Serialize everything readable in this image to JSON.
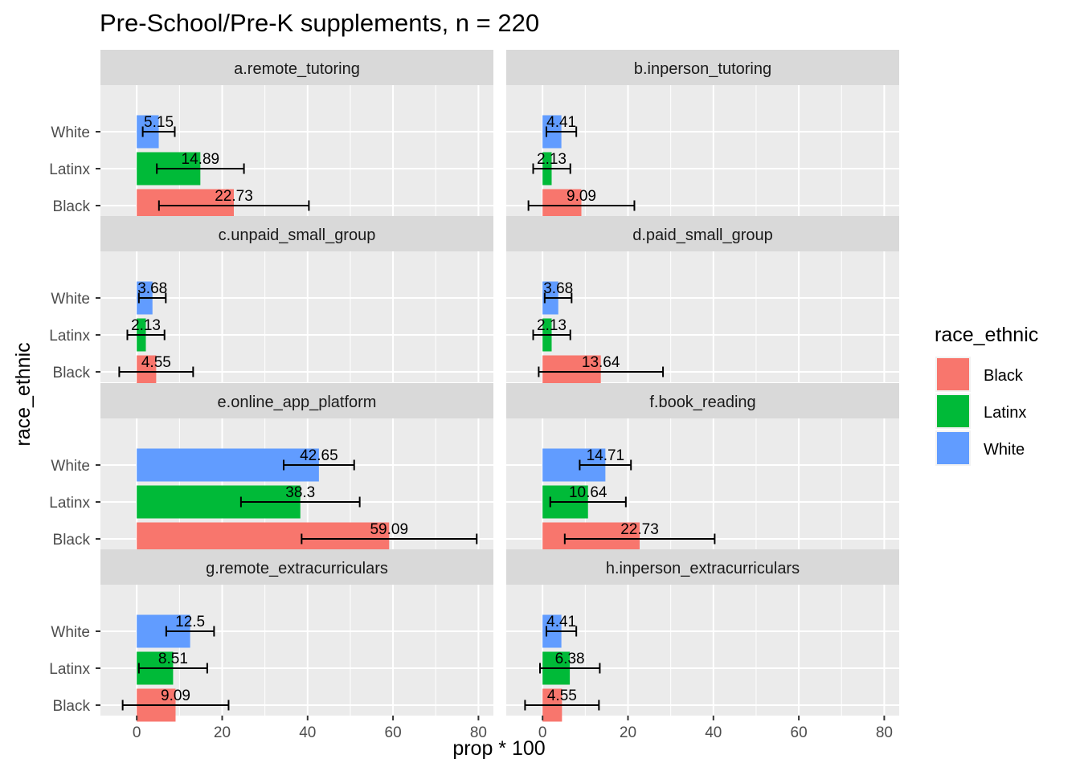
{
  "chart_data": {
    "type": "bar",
    "orientation": "horizontal",
    "title": "Pre-School/Pre-K supplements, n = 220",
    "xlabel": "prop * 100",
    "ylabel": "race_ethnic",
    "xlim": [
      -8.5,
      83.5
    ],
    "xticks": [
      0,
      20,
      40,
      60,
      80
    ],
    "categories": [
      "White",
      "Latinx",
      "Black"
    ],
    "grid": true,
    "legend": {
      "title": "race_ethnic",
      "position": "right",
      "entries": [
        {
          "name": "Black",
          "color": "#F8766D"
        },
        {
          "name": "Latinx",
          "color": "#00BA38"
        },
        {
          "name": "White",
          "color": "#619CFF"
        }
      ]
    },
    "colors": {
      "Black": "#F8766D",
      "Latinx": "#00BA38",
      "White": "#619CFF"
    },
    "panels": [
      {
        "name": "a.remote_tutoring",
        "bars": [
          {
            "group": "White",
            "value": 5.15,
            "label": "5.15",
            "lo": 1.4,
            "hi": 8.9
          },
          {
            "group": "Latinx",
            "value": 14.89,
            "label": "14.89",
            "lo": 4.7,
            "hi": 25.1
          },
          {
            "group": "Black",
            "value": 22.73,
            "label": "22.73",
            "lo": 5.2,
            "hi": 40.3
          }
        ]
      },
      {
        "name": "b.inperson_tutoring",
        "bars": [
          {
            "group": "White",
            "value": 4.41,
            "label": "4.41",
            "lo": 0.9,
            "hi": 7.9
          },
          {
            "group": "Latinx",
            "value": 2.13,
            "label": "2.13",
            "lo": -2.2,
            "hi": 6.5
          },
          {
            "group": "Black",
            "value": 9.09,
            "label": "9.09",
            "lo": -3.3,
            "hi": 21.5
          }
        ]
      },
      {
        "name": "c.unpaid_small_group",
        "bars": [
          {
            "group": "White",
            "value": 3.68,
            "label": "3.68",
            "lo": 0.5,
            "hi": 6.8
          },
          {
            "group": "Latinx",
            "value": 2.13,
            "label": "2.13",
            "lo": -2.2,
            "hi": 6.5
          },
          {
            "group": "Black",
            "value": 4.55,
            "label": "4.55",
            "lo": -4.1,
            "hi": 13.2
          }
        ]
      },
      {
        "name": "d.paid_small_group",
        "bars": [
          {
            "group": "White",
            "value": 3.68,
            "label": "3.68",
            "lo": 0.5,
            "hi": 6.8
          },
          {
            "group": "Latinx",
            "value": 2.13,
            "label": "2.13",
            "lo": -2.2,
            "hi": 6.5
          },
          {
            "group": "Black",
            "value": 13.64,
            "label": "13.64",
            "lo": -0.9,
            "hi": 28.2
          }
        ]
      },
      {
        "name": "e.online_app_platform",
        "bars": [
          {
            "group": "White",
            "value": 42.65,
            "label": "42.65",
            "lo": 34.4,
            "hi": 50.9
          },
          {
            "group": "Latinx",
            "value": 38.3,
            "label": "38.3",
            "lo": 24.4,
            "hi": 52.2
          },
          {
            "group": "Black",
            "value": 59.09,
            "label": "59.09",
            "lo": 38.6,
            "hi": 79.6
          }
        ]
      },
      {
        "name": "f.book_reading",
        "bars": [
          {
            "group": "White",
            "value": 14.71,
            "label": "14.71",
            "lo": 8.7,
            "hi": 20.7
          },
          {
            "group": "Latinx",
            "value": 10.64,
            "label": "10.64",
            "lo": 1.8,
            "hi": 19.5
          },
          {
            "group": "Black",
            "value": 22.73,
            "label": "22.73",
            "lo": 5.2,
            "hi": 40.3
          }
        ]
      },
      {
        "name": "g.remote_extracurriculars",
        "bars": [
          {
            "group": "White",
            "value": 12.5,
            "label": "12.5",
            "lo": 6.9,
            "hi": 18.1
          },
          {
            "group": "Latinx",
            "value": 8.51,
            "label": "8.51",
            "lo": 0.5,
            "hi": 16.5
          },
          {
            "group": "Black",
            "value": 9.09,
            "label": "9.09",
            "lo": -3.3,
            "hi": 21.5
          }
        ]
      },
      {
        "name": "h.inperson_extracurriculars",
        "bars": [
          {
            "group": "White",
            "value": 4.41,
            "label": "4.41",
            "lo": 0.9,
            "hi": 7.9
          },
          {
            "group": "Latinx",
            "value": 6.38,
            "label": "6.38",
            "lo": -0.6,
            "hi": 13.4
          },
          {
            "group": "Black",
            "value": 4.55,
            "label": "4.55",
            "lo": -4.1,
            "hi": 13.2
          }
        ]
      }
    ]
  }
}
